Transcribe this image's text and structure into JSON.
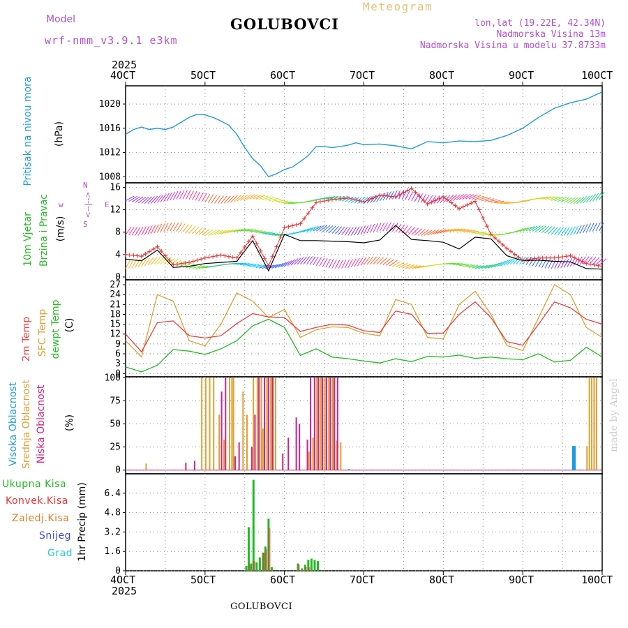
{
  "header": {
    "model_label": "Model",
    "model_name": "wrf-nmm_v3.9.1 e3km",
    "chart_title": "Meteogram",
    "location": "GOLUBOVCI",
    "coords": "lon,lat (19.22E, 42.34N)",
    "elevation": "Nadmorska Visina 13m",
    "model_elevation": "Nadmorska Visina u modelu 37.8733m",
    "footer_location": "GOLUBOVCI",
    "watermark": "made by Angel"
  },
  "colors": {
    "pressure": "#1e9be0",
    "wind_speed": "#e83535",
    "wind_mean": "#000000",
    "temp_2m": "#e84040",
    "temp_sfc": "#e0a030",
    "dewpoint": "#22bb22",
    "cloud_high": "#1e9be0",
    "cloud_mid": "#e0a030",
    "cloud_low": "#cc2288",
    "rain_total": "#22bb22",
    "rain_conv": "#e83535",
    "rain_frozen": "#e0802a",
    "snow": "#4444dd",
    "hail": "#22cccc",
    "purple_text": "#b34fd6",
    "meteogram_title": "#e8c07a"
  },
  "chart_data": [
    {
      "id": "pressure",
      "type": "line",
      "title": "",
      "ylabel": [
        "Pritisak na nivou mora",
        "(hPa)"
      ],
      "ylim": [
        1007,
        1023
      ],
      "yticks": [
        1008,
        1012,
        1016,
        1020
      ],
      "grid": true,
      "series": [
        {
          "name": "Pritisak na nivou mora",
          "x": [
            4.0,
            4.1,
            4.2,
            4.3,
            4.4,
            4.5,
            4.6,
            4.7,
            4.8,
            4.9,
            5.0,
            5.1,
            5.2,
            5.3,
            5.4,
            5.5,
            5.6,
            5.7,
            5.8,
            5.9,
            6.0,
            6.1,
            6.2,
            6.3,
            6.4,
            6.5,
            6.6,
            6.7,
            6.8,
            6.9,
            7.0,
            7.2,
            7.4,
            7.6,
            7.8,
            8.0,
            8.2,
            8.4,
            8.6,
            8.8,
            9.0,
            9.2,
            9.4,
            9.6,
            9.8,
            10.0
          ],
          "values": [
            1015.0,
            1015.8,
            1016.2,
            1015.8,
            1016.0,
            1015.8,
            1016.2,
            1017.0,
            1017.8,
            1018.3,
            1018.2,
            1017.8,
            1017.2,
            1016.5,
            1015.0,
            1012.8,
            1011.0,
            1009.8,
            1008.0,
            1008.5,
            1009.2,
            1009.6,
            1010.5,
            1011.5,
            1013.0,
            1013.0,
            1012.8,
            1013.0,
            1013.2,
            1013.6,
            1013.3,
            1013.4,
            1013.1,
            1012.6,
            1013.8,
            1013.6,
            1013.9,
            1013.8,
            1014.0,
            1014.8,
            1016.0,
            1017.8,
            1019.3,
            1020.2,
            1020.8,
            1022.0
          ]
        }
      ]
    },
    {
      "id": "wind",
      "type": "line",
      "title": "",
      "ylabel": [
        "10m Vjetar",
        "Brzina i Pravac",
        "(m/s)"
      ],
      "compass_labels": [
        "w",
        "<--|-->",
        "E",
        "N",
        "S"
      ],
      "ylim": [
        -0.5,
        16.8
      ],
      "yticks": [
        0,
        4,
        8,
        12,
        16
      ],
      "grid": true,
      "series": [
        {
          "name": "Brzina",
          "x": [
            4.0,
            4.2,
            4.4,
            4.6,
            4.8,
            5.0,
            5.2,
            5.4,
            5.6,
            5.8,
            6.0,
            6.2,
            6.4,
            6.6,
            6.8,
            7.0,
            7.2,
            7.4,
            7.6,
            7.8,
            8.0,
            8.2,
            8.4,
            8.6,
            8.8,
            9.0,
            9.2,
            9.4,
            9.6,
            9.8,
            10.0
          ],
          "values": [
            4.0,
            3.7,
            5.4,
            2.2,
            2.6,
            3.4,
            3.9,
            3.4,
            7.3,
            2.0,
            8.8,
            9.5,
            13.3,
            13.8,
            14.1,
            13.4,
            14.6,
            14.3,
            15.8,
            13.0,
            14.3,
            12.2,
            13.5,
            7.6,
            5.1,
            3.0,
            3.4,
            3.4,
            3.8,
            2.4,
            1.9
          ]
        },
        {
          "name": "Srednja brzina",
          "x": [
            4.0,
            4.2,
            4.4,
            4.6,
            4.8,
            5.0,
            5.2,
            5.4,
            5.6,
            5.8,
            6.0,
            6.2,
            6.4,
            6.6,
            6.8,
            7.0,
            7.2,
            7.4,
            7.6,
            7.8,
            8.0,
            8.2,
            8.4,
            8.6,
            8.8,
            9.0,
            9.2,
            9.4,
            9.6,
            9.8,
            10.0
          ],
          "values": [
            3.2,
            2.9,
            4.8,
            1.7,
            1.9,
            2.4,
            2.6,
            2.8,
            6.5,
            1.1,
            7.6,
            6.5,
            6.5,
            6.4,
            6.3,
            6.1,
            6.6,
            9.2,
            6.7,
            6.5,
            6.2,
            5.0,
            7.1,
            6.8,
            3.8,
            2.9,
            3.0,
            2.8,
            2.7,
            1.5,
            1.4
          ]
        }
      ]
    },
    {
      "id": "temperature",
      "type": "line",
      "title": "",
      "ylabel": [
        "2m Temp",
        "SFC Temp",
        "dewpt Temp",
        "(C)"
      ],
      "ylim": [
        -1,
        28.5
      ],
      "yticks": [
        0,
        3,
        6,
        9,
        12,
        15,
        18,
        21,
        24,
        27
      ],
      "grid": true,
      "series": [
        {
          "name": "2m Temp",
          "x": [
            4.0,
            4.2,
            4.4,
            4.6,
            4.8,
            5.0,
            5.2,
            5.4,
            5.6,
            5.8,
            6.0,
            6.2,
            6.4,
            6.6,
            6.8,
            7.0,
            7.2,
            7.4,
            7.6,
            7.8,
            8.0,
            8.2,
            8.4,
            8.6,
            8.8,
            9.0,
            9.2,
            9.4,
            9.6,
            9.8,
            10.0
          ],
          "values": [
            12.0,
            6.6,
            15.5,
            16.0,
            11.5,
            10.8,
            11.5,
            15.2,
            18.2,
            17.2,
            17.0,
            12.8,
            14.0,
            15.0,
            14.7,
            13.0,
            12.5,
            19.0,
            18.0,
            12.2,
            12.3,
            18.0,
            21.8,
            17.0,
            9.7,
            8.6,
            15.0,
            21.8,
            20.0,
            16.5,
            15.0
          ]
        },
        {
          "name": "SFC Temp",
          "x": [
            4.0,
            4.2,
            4.4,
            4.6,
            4.8,
            5.0,
            5.2,
            5.4,
            5.6,
            5.8,
            6.0,
            6.2,
            6.4,
            6.6,
            6.8,
            7.0,
            7.2,
            7.4,
            7.6,
            7.8,
            8.0,
            8.2,
            8.4,
            8.6,
            8.8,
            9.0,
            9.2,
            9.4,
            9.6,
            9.8,
            10.0
          ],
          "values": [
            10.0,
            5.0,
            24.0,
            22.0,
            10.0,
            8.4,
            15.0,
            24.5,
            22.0,
            17.0,
            19.5,
            11.0,
            13.3,
            14.2,
            14.0,
            12.2,
            11.5,
            22.5,
            21.0,
            11.0,
            10.5,
            21.0,
            25.0,
            18.0,
            8.5,
            7.0,
            17.0,
            27.0,
            24.0,
            14.0,
            11.0
          ]
        },
        {
          "name": "dewpt Temp",
          "x": [
            4.0,
            4.2,
            4.4,
            4.6,
            4.8,
            5.0,
            5.2,
            5.4,
            5.6,
            5.8,
            6.0,
            6.2,
            6.4,
            6.6,
            6.8,
            7.0,
            7.2,
            7.4,
            7.6,
            7.8,
            8.0,
            8.2,
            8.4,
            8.6,
            8.8,
            9.0,
            9.2,
            9.4,
            9.6,
            9.8,
            10.0
          ],
          "values": [
            2.0,
            0.5,
            2.5,
            7.3,
            6.8,
            5.8,
            7.5,
            10.0,
            14.5,
            16.5,
            14.0,
            5.5,
            7.5,
            5.0,
            4.5,
            3.8,
            3.2,
            4.5,
            3.6,
            5.2,
            5.0,
            5.6,
            4.6,
            5.0,
            4.5,
            4.2,
            6.0,
            3.5,
            4.0,
            8.0,
            5.0
          ]
        }
      ]
    },
    {
      "id": "cloud",
      "type": "bar",
      "title": "",
      "ylabel": [
        "Visoka Oblacnost",
        "Srednja Oblacnost",
        "Niska Oblacnost",
        "(%)"
      ],
      "ylim": [
        -4,
        101
      ],
      "yticks": [
        0,
        25,
        50,
        75,
        100
      ],
      "grid": true,
      "series": [
        {
          "name": "Visoka Oblacnost",
          "x": [
            6.8,
            9.62,
            9.63,
            9.64
          ],
          "values": [
            1,
            26,
            26,
            26
          ]
        },
        {
          "name": "Srednja Oblacnost",
          "x": [
            4.25,
            4.95,
            5.0,
            5.05,
            5.1,
            5.17,
            5.23,
            5.3,
            5.33,
            5.35,
            5.47,
            5.52,
            5.6,
            5.65,
            5.7,
            5.72,
            5.77,
            5.82,
            5.85,
            5.88,
            6.3,
            6.35,
            6.4,
            6.45,
            6.5,
            6.55,
            6.6,
            6.65,
            6.7,
            9.8,
            9.83,
            9.86,
            9.89,
            9.92
          ],
          "values": [
            7,
            100,
            100,
            100,
            100,
            60,
            33,
            100,
            100,
            100,
            85,
            60,
            100,
            100,
            100,
            45,
            100,
            100,
            100,
            100,
            20,
            35,
            100,
            100,
            100,
            100,
            100,
            32,
            30,
            26,
            100,
            100,
            100,
            100
          ]
        },
        {
          "name": "Niska Oblacnost",
          "x": [
            4.75,
            4.86,
            5.2,
            5.25,
            5.37,
            5.42,
            5.58,
            5.62,
            5.67,
            5.74,
            5.79,
            5.84,
            5.97,
            6.04,
            6.14,
            6.18,
            6.28,
            6.32,
            6.37,
            6.42,
            6.47,
            6.52,
            6.57,
            6.62,
            6.66
          ],
          "values": [
            8,
            10,
            85,
            100,
            15,
            30,
            25,
            60,
            100,
            100,
            100,
            100,
            18,
            35,
            57,
            50,
            33,
            100,
            100,
            100,
            100,
            100,
            100,
            100,
            100
          ]
        }
      ]
    },
    {
      "id": "precip",
      "type": "bar",
      "title": "",
      "ylabel": [
        "Ukupna Kisa",
        "Konvek.Kisa",
        "Zaledj.Kisa",
        "Snijeg",
        "Grad",
        "1hr Precip (mm)"
      ],
      "ylim": [
        0,
        8.0
      ],
      "yticks": [
        0,
        1.6,
        3.2,
        4.8,
        6.4
      ],
      "grid": true,
      "series": [
        {
          "name": "Ukupna Kisa",
          "x": [
            5.52,
            5.55,
            5.58,
            5.61,
            5.65,
            5.69,
            5.73,
            5.76,
            5.8,
            5.84,
            6.17,
            6.22,
            6.26,
            6.3,
            6.34,
            6.38,
            6.42
          ],
          "values": [
            0.4,
            3.6,
            0.6,
            7.5,
            0.7,
            1.1,
            1.5,
            2.0,
            4.3,
            0.3,
            0.6,
            0.2,
            0.5,
            0.9,
            1.0,
            0.9,
            0.8
          ]
        },
        {
          "name": "Konvek.Kisa",
          "x": [
            5.56,
            5.62,
            5.74,
            5.77,
            5.81,
            6.18,
            6.27,
            6.31
          ],
          "values": [
            0.5,
            0.8,
            1.5,
            1.8,
            3.5,
            0.5,
            0.3,
            0.3
          ]
        },
        {
          "name": "Zaledj.Kisa",
          "x": [],
          "values": []
        },
        {
          "name": "Snijeg",
          "x": [],
          "values": []
        },
        {
          "name": "Grad",
          "x": [],
          "values": []
        }
      ]
    }
  ],
  "x_axis": {
    "year": "2025",
    "ticks": [
      "4OCT",
      "5OCT",
      "6OCT",
      "7OCT",
      "8OCT",
      "9OCT",
      "10OCT"
    ],
    "range": [
      4,
      10
    ]
  }
}
